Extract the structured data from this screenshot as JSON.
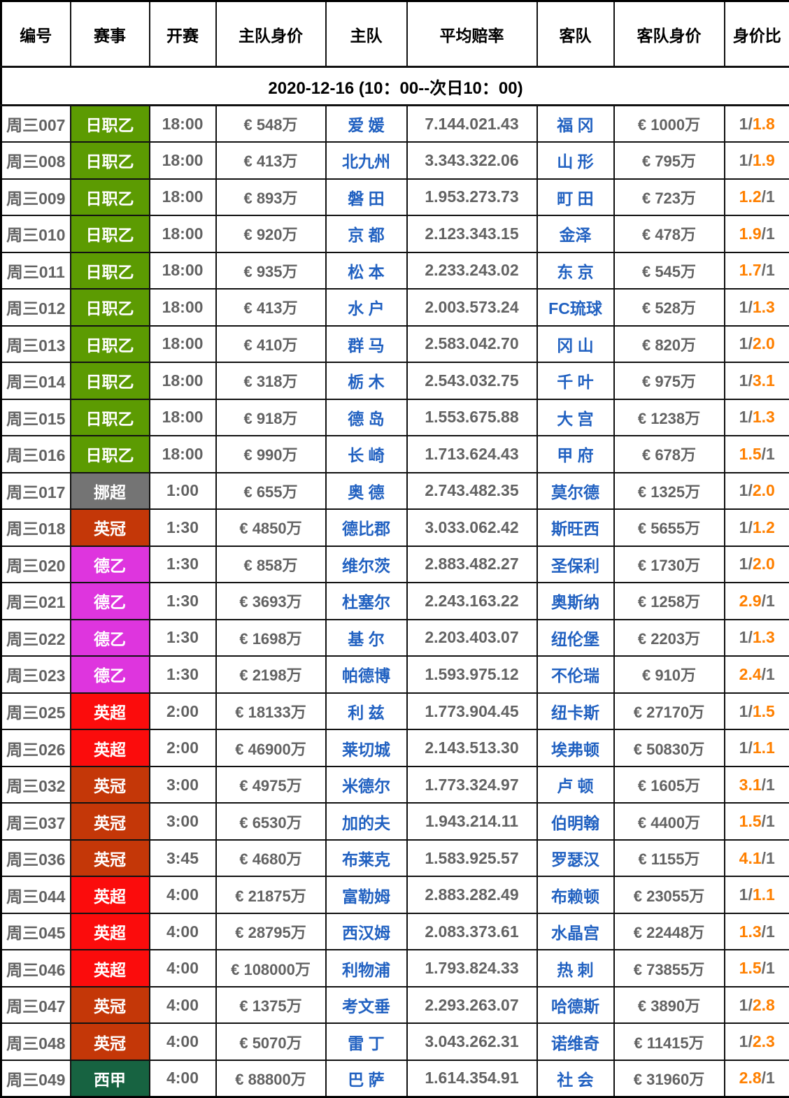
{
  "date_banner": "2020-12-16 (10：00--次日10：00)",
  "colors": {
    "league": {
      "日职乙": "#5c9b02",
      "挪超": "#747474",
      "英冠": "#c43708",
      "德乙": "#de35de",
      "英超": "#fb0c0c",
      "西甲": "#176341"
    },
    "team_text": "#2161c1",
    "number_text": "#636363",
    "ratio_highlight": "#ff8000",
    "grid_border": "#111111"
  },
  "chart_data": {
    "type": "table",
    "title": "2020-12-16 (10：00--次日10：00)",
    "columns": [
      "编号",
      "赛事",
      "开赛",
      "主队身价",
      "主队",
      "平均赔率",
      "客队",
      "客队身价",
      "身价比"
    ],
    "rows": [
      {
        "id": "周三007",
        "league": "日职乙",
        "kickoff": "18:00",
        "home_value": "€ 548万",
        "home": "爱 媛",
        "avg_odds": "7.144.021.43",
        "away": "福 冈",
        "away_value": "€ 1000万",
        "ratio": "1/1.8",
        "highlight": "right"
      },
      {
        "id": "周三008",
        "league": "日职乙",
        "kickoff": "18:00",
        "home_value": "€ 413万",
        "home": "北九州",
        "avg_odds": "3.343.322.06",
        "away": "山 形",
        "away_value": "€ 795万",
        "ratio": "1/1.9",
        "highlight": "right"
      },
      {
        "id": "周三009",
        "league": "日职乙",
        "kickoff": "18:00",
        "home_value": "€ 893万",
        "home": "磐 田",
        "avg_odds": "1.953.273.73",
        "away": "町 田",
        "away_value": "€ 723万",
        "ratio": "1.2/1",
        "highlight": "left"
      },
      {
        "id": "周三010",
        "league": "日职乙",
        "kickoff": "18:00",
        "home_value": "€ 920万",
        "home": "京 都",
        "avg_odds": "2.123.343.15",
        "away": "金泽",
        "away_value": "€ 478万",
        "ratio": "1.9/1",
        "highlight": "left"
      },
      {
        "id": "周三011",
        "league": "日职乙",
        "kickoff": "18:00",
        "home_value": "€ 935万",
        "home": "松 本",
        "avg_odds": "2.233.243.02",
        "away": "东 京",
        "away_value": "€ 545万",
        "ratio": "1.7/1",
        "highlight": "left"
      },
      {
        "id": "周三012",
        "league": "日职乙",
        "kickoff": "18:00",
        "home_value": "€ 413万",
        "home": "水 户",
        "avg_odds": "2.003.573.24",
        "away": "FC琉球",
        "away_value": "€ 528万",
        "ratio": "1/1.3",
        "highlight": "right"
      },
      {
        "id": "周三013",
        "league": "日职乙",
        "kickoff": "18:00",
        "home_value": "€ 410万",
        "home": "群 马",
        "avg_odds": "2.583.042.70",
        "away": "冈 山",
        "away_value": "€ 820万",
        "ratio": "1/2.0",
        "highlight": "right"
      },
      {
        "id": "周三014",
        "league": "日职乙",
        "kickoff": "18:00",
        "home_value": "€ 318万",
        "home": "栃 木",
        "avg_odds": "2.543.032.75",
        "away": "千 叶",
        "away_value": "€ 975万",
        "ratio": "1/3.1",
        "highlight": "right"
      },
      {
        "id": "周三015",
        "league": "日职乙",
        "kickoff": "18:00",
        "home_value": "€ 918万",
        "home": "德 岛",
        "avg_odds": "1.553.675.88",
        "away": "大 宫",
        "away_value": "€ 1238万",
        "ratio": "1/1.3",
        "highlight": "right"
      },
      {
        "id": "周三016",
        "league": "日职乙",
        "kickoff": "18:00",
        "home_value": "€ 990万",
        "home": "长 崎",
        "avg_odds": "1.713.624.43",
        "away": "甲 府",
        "away_value": "€ 678万",
        "ratio": "1.5/1",
        "highlight": "left"
      },
      {
        "id": "周三017",
        "league": "挪超",
        "kickoff": "1:00",
        "home_value": "€ 655万",
        "home": "奥 德",
        "avg_odds": "2.743.482.35",
        "away": "莫尔德",
        "away_value": "€ 1325万",
        "ratio": "1/2.0",
        "highlight": "right"
      },
      {
        "id": "周三018",
        "league": "英冠",
        "kickoff": "1:30",
        "home_value": "€ 4850万",
        "home": "德比郡",
        "avg_odds": "3.033.062.42",
        "away": "斯旺西",
        "away_value": "€ 5655万",
        "ratio": "1/1.2",
        "highlight": "right"
      },
      {
        "id": "周三020",
        "league": "德乙",
        "kickoff": "1:30",
        "home_value": "€ 858万",
        "home": "维尔茨",
        "avg_odds": "2.883.482.27",
        "away": "圣保利",
        "away_value": "€ 1730万",
        "ratio": "1/2.0",
        "highlight": "right"
      },
      {
        "id": "周三021",
        "league": "德乙",
        "kickoff": "1:30",
        "home_value": "€ 3693万",
        "home": "杜塞尔",
        "avg_odds": "2.243.163.22",
        "away": "奥斯纳",
        "away_value": "€ 1258万",
        "ratio": "2.9/1",
        "highlight": "left"
      },
      {
        "id": "周三022",
        "league": "德乙",
        "kickoff": "1:30",
        "home_value": "€ 1698万",
        "home": "基 尔",
        "avg_odds": "2.203.403.07",
        "away": "纽伦堡",
        "away_value": "€ 2203万",
        "ratio": "1/1.3",
        "highlight": "right"
      },
      {
        "id": "周三023",
        "league": "德乙",
        "kickoff": "1:30",
        "home_value": "€ 2198万",
        "home": "帕德博",
        "avg_odds": "1.593.975.12",
        "away": "不伦瑞",
        "away_value": "€ 910万",
        "ratio": "2.4/1",
        "highlight": "left"
      },
      {
        "id": "周三025",
        "league": "英超",
        "kickoff": "2:00",
        "home_value": "€ 18133万",
        "home": "利 兹",
        "avg_odds": "1.773.904.45",
        "away": "纽卡斯",
        "away_value": "€ 27170万",
        "ratio": "1/1.5",
        "highlight": "right"
      },
      {
        "id": "周三026",
        "league": "英超",
        "kickoff": "2:00",
        "home_value": "€ 46900万",
        "home": "莱切城",
        "avg_odds": "2.143.513.30",
        "away": "埃弗顿",
        "away_value": "€ 50830万",
        "ratio": "1/1.1",
        "highlight": "right"
      },
      {
        "id": "周三032",
        "league": "英冠",
        "kickoff": "3:00",
        "home_value": "€ 4975万",
        "home": "米德尔",
        "avg_odds": "1.773.324.97",
        "away": "卢 顿",
        "away_value": "€ 1605万",
        "ratio": "3.1/1",
        "highlight": "left"
      },
      {
        "id": "周三037",
        "league": "英冠",
        "kickoff": "3:00",
        "home_value": "€ 6530万",
        "home": "加的夫",
        "avg_odds": "1.943.214.11",
        "away": "伯明翰",
        "away_value": "€ 4400万",
        "ratio": "1.5/1",
        "highlight": "left"
      },
      {
        "id": "周三036",
        "league": "英冠",
        "kickoff": "3:45",
        "home_value": "€ 4680万",
        "home": "布莱克",
        "avg_odds": "1.583.925.57",
        "away": "罗瑟汉",
        "away_value": "€ 1155万",
        "ratio": "4.1/1",
        "highlight": "left"
      },
      {
        "id": "周三044",
        "league": "英超",
        "kickoff": "4:00",
        "home_value": "€ 21875万",
        "home": "富勒姆",
        "avg_odds": "2.883.282.49",
        "away": "布赖顿",
        "away_value": "€ 23055万",
        "ratio": "1/1.1",
        "highlight": "right"
      },
      {
        "id": "周三045",
        "league": "英超",
        "kickoff": "4:00",
        "home_value": "€ 28795万",
        "home": "西汉姆",
        "avg_odds": "2.083.373.61",
        "away": "水晶宫",
        "away_value": "€ 22448万",
        "ratio": "1.3/1",
        "highlight": "left"
      },
      {
        "id": "周三046",
        "league": "英超",
        "kickoff": "4:00",
        "home_value": "€ 108000万",
        "home": "利物浦",
        "avg_odds": "1.793.824.33",
        "away": "热 刺",
        "away_value": "€ 73855万",
        "ratio": "1.5/1",
        "highlight": "left"
      },
      {
        "id": "周三047",
        "league": "英冠",
        "kickoff": "4:00",
        "home_value": "€ 1375万",
        "home": "考文垂",
        "avg_odds": "2.293.263.07",
        "away": "哈德斯",
        "away_value": "€ 3890万",
        "ratio": "1/2.8",
        "highlight": "right"
      },
      {
        "id": "周三048",
        "league": "英冠",
        "kickoff": "4:00",
        "home_value": "€ 5070万",
        "home": "雷 丁",
        "avg_odds": "3.043.262.31",
        "away": "诺维奇",
        "away_value": "€ 11415万",
        "ratio": "1/2.3",
        "highlight": "right"
      },
      {
        "id": "周三049",
        "league": "西甲",
        "kickoff": "4:00",
        "home_value": "€ 88800万",
        "home": "巴 萨",
        "avg_odds": "1.614.354.91",
        "away": "社 会",
        "away_value": "€ 31960万",
        "ratio": "2.8/1",
        "highlight": "left"
      }
    ]
  }
}
